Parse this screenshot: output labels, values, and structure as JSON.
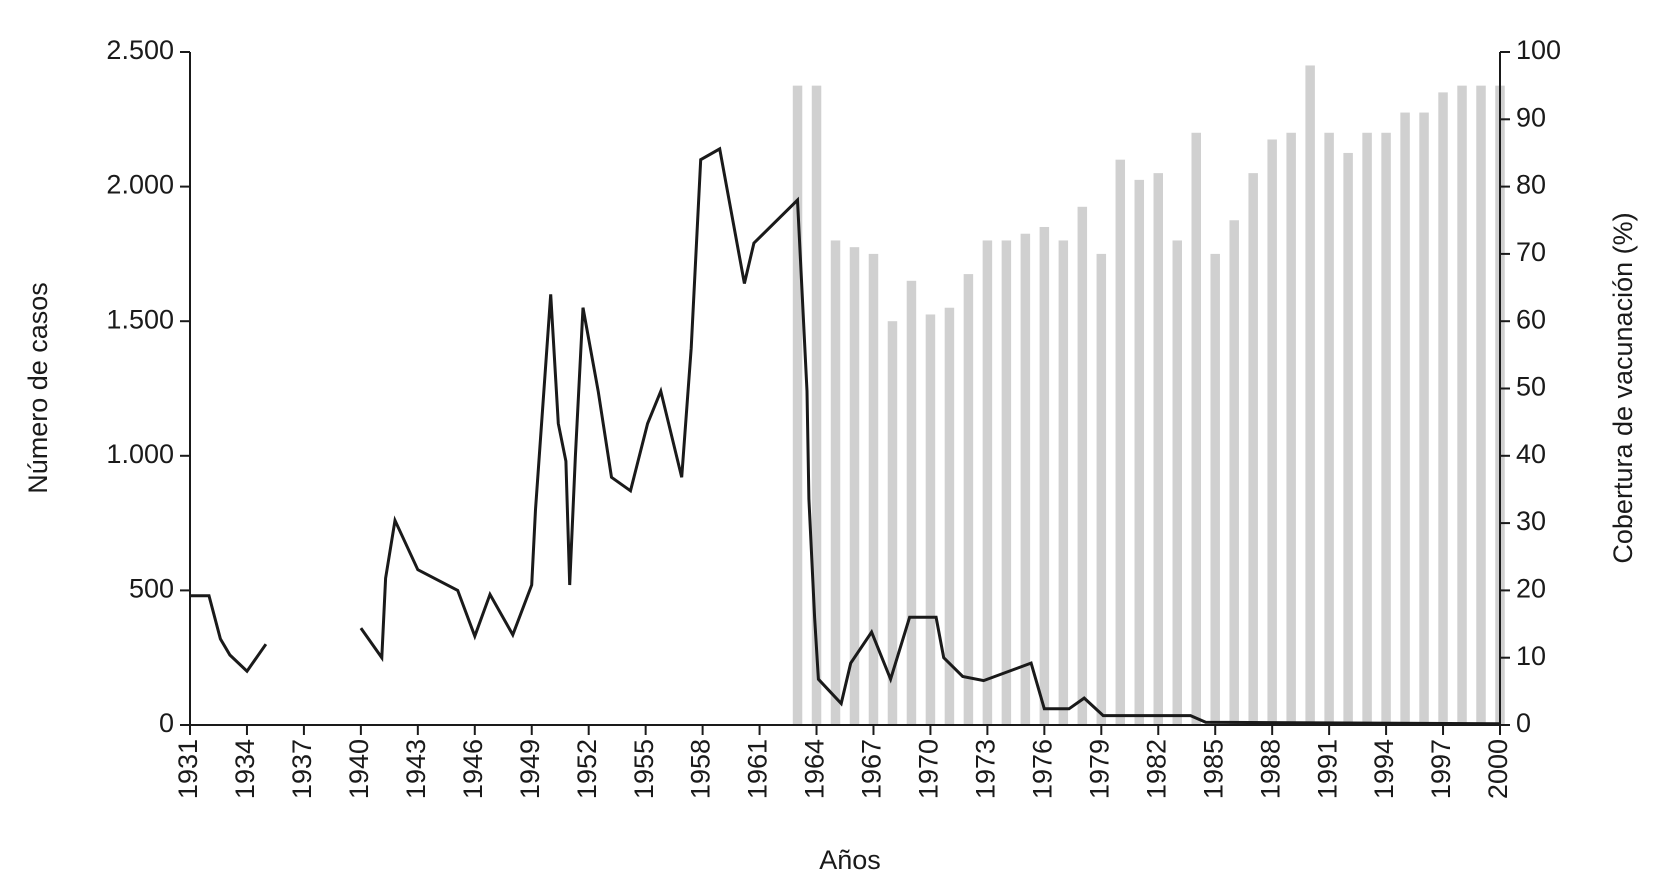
{
  "chart_data": {
    "type": "combo",
    "xlabel": "Años",
    "ylabel": "Número de casos",
    "y2label": "Cobertura de vacunación (%)",
    "xlim": [
      1931,
      2000
    ],
    "xticks": [
      1931,
      1934,
      1937,
      1940,
      1943,
      1946,
      1949,
      1952,
      1955,
      1958,
      1961,
      1964,
      1967,
      1970,
      1973,
      1976,
      1979,
      1982,
      1985,
      1988,
      1991,
      1994,
      1997,
      2000
    ],
    "ylim": [
      0,
      2500
    ],
    "yticks": [
      0,
      500,
      {
        "value": 1000,
        "label": "1.000"
      },
      {
        "value": 1500,
        "label": "1.500"
      },
      {
        "value": 2000,
        "label": "2.000"
      },
      {
        "value": 2500,
        "label": "2.500"
      }
    ],
    "y2lim": [
      0,
      100
    ],
    "y2ticks": [
      0,
      10,
      20,
      30,
      40,
      50,
      60,
      70,
      80,
      90,
      100
    ],
    "series": [
      {
        "type": "bar",
        "axis": "y2",
        "color": "#d0d0d0",
        "x": [
          1963,
          1964,
          1965,
          1966,
          1967,
          1968,
          1969,
          1970,
          1971,
          1972,
          1973,
          1974,
          1975,
          1976,
          1977,
          1978,
          1979,
          1980,
          1981,
          1982,
          1983,
          1984,
          1985,
          1986,
          1987,
          1988,
          1989,
          1990,
          1991,
          1992,
          1993,
          1994,
          1995,
          1996,
          1997,
          1998,
          1999,
          2000
        ],
        "values": [
          95,
          95,
          72,
          71,
          70,
          60,
          66,
          61,
          62,
          67,
          72,
          72,
          73,
          74,
          72,
          77,
          70,
          84,
          81,
          82,
          72,
          88,
          70,
          75,
          82,
          87,
          88,
          98,
          88,
          85,
          88,
          88,
          91,
          91,
          94,
          95,
          95,
          95
        ]
      },
      {
        "type": "line",
        "color": "#1a1a1a",
        "x": [
          1931,
          1932,
          1932.6,
          1933.1,
          1934,
          1935,
          null,
          1940,
          1941.1,
          1941.3,
          1941.8,
          1943,
          1945.1,
          1946,
          1946.8,
          1948,
          1949,
          1949.2,
          1950,
          1950.4,
          1950.8,
          1951,
          1951.3,
          1951.7,
          1952.5,
          1953.2,
          1954.2,
          1955.1,
          1955.8,
          1956.9,
          1957.4,
          1957.9,
          1958.9,
          1960.2,
          1960.7,
          1963,
          1963.5,
          1963.6,
          1963.9,
          1964.1,
          1965.3,
          1965.8,
          1966.9,
          1967.9,
          1968.9,
          1970.3,
          1970.7,
          1971.7,
          1972.8,
          1975.3,
          1976,
          1977.3,
          1978.1,
          1979.1,
          1983.7,
          1984.5,
          2000
        ],
        "values": [
          480,
          480,
          320,
          260,
          200,
          300,
          null,
          360,
          250,
          545,
          760,
          577,
          500,
          330,
          485,
          335,
          520,
          800,
          1600,
          1120,
          980,
          520,
          1000,
          1550,
          1240,
          920,
          870,
          1120,
          1240,
          920,
          1400,
          2100,
          2140,
          1640,
          1790,
          1950,
          1240,
          840,
          400,
          170,
          80,
          230,
          345,
          170,
          400,
          400,
          250,
          180,
          165,
          230,
          60,
          60,
          100,
          35,
          35,
          10,
          5
        ]
      }
    ]
  }
}
